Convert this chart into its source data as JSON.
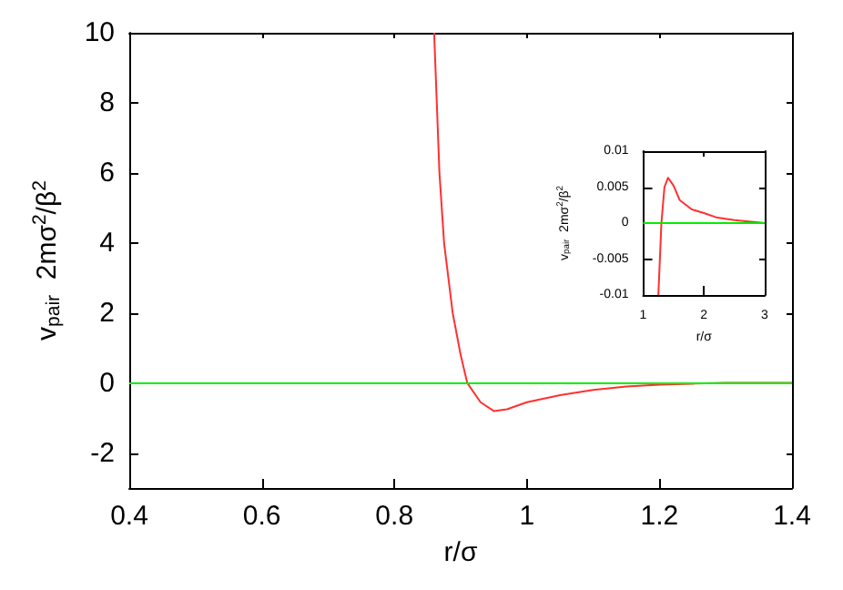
{
  "chart_data": [
    {
      "type": "line",
      "xlabel": "r/σ",
      "ylabel": "v$_{pair}$  2mσ$^{2}$/β$^{2}$",
      "xlim": [
        0.4,
        1.4
      ],
      "xticks": [
        0.4,
        0.6,
        0.8,
        1,
        1.2,
        1.4
      ],
      "ylim": [
        -3,
        10
      ],
      "yticks": [
        -2,
        0,
        2,
        4,
        6,
        8,
        10
      ],
      "x": [
        0.86,
        0.868,
        0.875,
        0.888,
        0.9,
        0.91,
        0.93,
        0.95,
        0.97,
        1.0,
        1.05,
        1.1,
        1.15,
        1.2,
        1.25,
        1.3,
        1.4
      ],
      "series": [
        {
          "color": "#ff3030",
          "values": [
            10,
            6,
            4,
            2,
            0.8,
            0,
            -0.55,
            -0.8,
            -0.75,
            -0.55,
            -0.35,
            -0.2,
            -0.1,
            -0.05,
            -0.02,
            0,
            0
          ]
        }
      ],
      "ref_lines": [
        {
          "axis": "y",
          "value": 0,
          "color": "#00ee00"
        }
      ]
    },
    {
      "type": "line",
      "xlabel": "r/σ",
      "ylabel": "v$_{pair}$  2mσ$^{2}$/β$^{2}$",
      "xlim": [
        1,
        3
      ],
      "xticks": [
        1,
        2,
        3
      ],
      "ylim": [
        -0.01,
        0.01
      ],
      "yticks": [
        -0.01,
        -0.005,
        0,
        0.005,
        0.01
      ],
      "x": [
        1.25,
        1.28,
        1.3,
        1.35,
        1.41,
        1.5,
        1.6,
        1.8,
        2.0,
        2.2,
        2.5,
        3.0
      ],
      "series": [
        {
          "color": "#ff3030",
          "values": [
            -0.01,
            -0.004,
            0,
            0.005,
            0.0063,
            0.0052,
            0.0032,
            0.0019,
            0.0014,
            0.0008,
            0.0004,
            0
          ]
        }
      ],
      "ref_lines": [
        {
          "axis": "y",
          "value": 0,
          "color": "#00ee00"
        }
      ]
    }
  ]
}
